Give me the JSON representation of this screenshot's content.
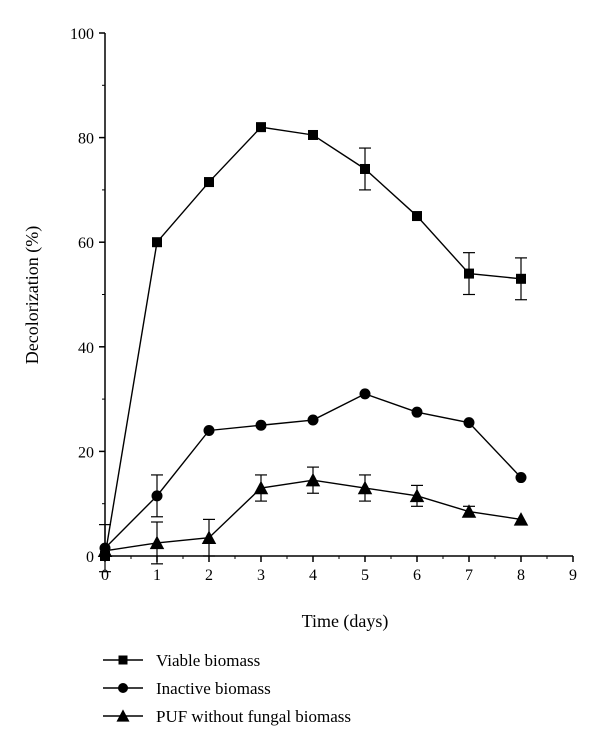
{
  "chart_data": {
    "type": "line",
    "title": "",
    "xlabel": "Time (days)",
    "ylabel": "Decolorization (%)",
    "xlim": [
      0,
      9
    ],
    "ylim": [
      0,
      100
    ],
    "x_ticks": [
      "0",
      "1",
      "2",
      "3",
      "4",
      "5",
      "6",
      "7",
      "8",
      "9"
    ],
    "y_ticks": [
      "0",
      "20",
      "40",
      "60",
      "80",
      "100"
    ],
    "grid": false,
    "legend_position": "bottom",
    "series": [
      {
        "name": "Viable biomass",
        "marker": "square",
        "x": [
          0,
          1,
          2,
          3,
          4,
          5,
          6,
          7,
          8
        ],
        "y": [
          0,
          60,
          71.5,
          82,
          80.5,
          74,
          65,
          54,
          53
        ],
        "error": [
          0,
          0,
          0,
          0,
          0,
          4,
          0,
          4,
          4
        ]
      },
      {
        "name": "Inactive biomass",
        "marker": "circle",
        "x": [
          0,
          1,
          2,
          3,
          4,
          5,
          6,
          7,
          8
        ],
        "y": [
          1.5,
          11.5,
          24,
          25,
          26,
          31,
          27.5,
          25.5,
          15
        ],
        "error": [
          4.5,
          4,
          0,
          0,
          0,
          0,
          0,
          0,
          0
        ]
      },
      {
        "name": "PUF without fungal biomass",
        "marker": "triangle",
        "x": [
          0,
          1,
          2,
          3,
          4,
          5,
          6,
          7,
          8
        ],
        "y": [
          1,
          2.5,
          3.5,
          13,
          14.5,
          13,
          11.5,
          8.5,
          7
        ],
        "error": [
          0,
          4,
          3.5,
          2.5,
          2.5,
          2.5,
          2,
          1,
          0
        ]
      }
    ]
  }
}
